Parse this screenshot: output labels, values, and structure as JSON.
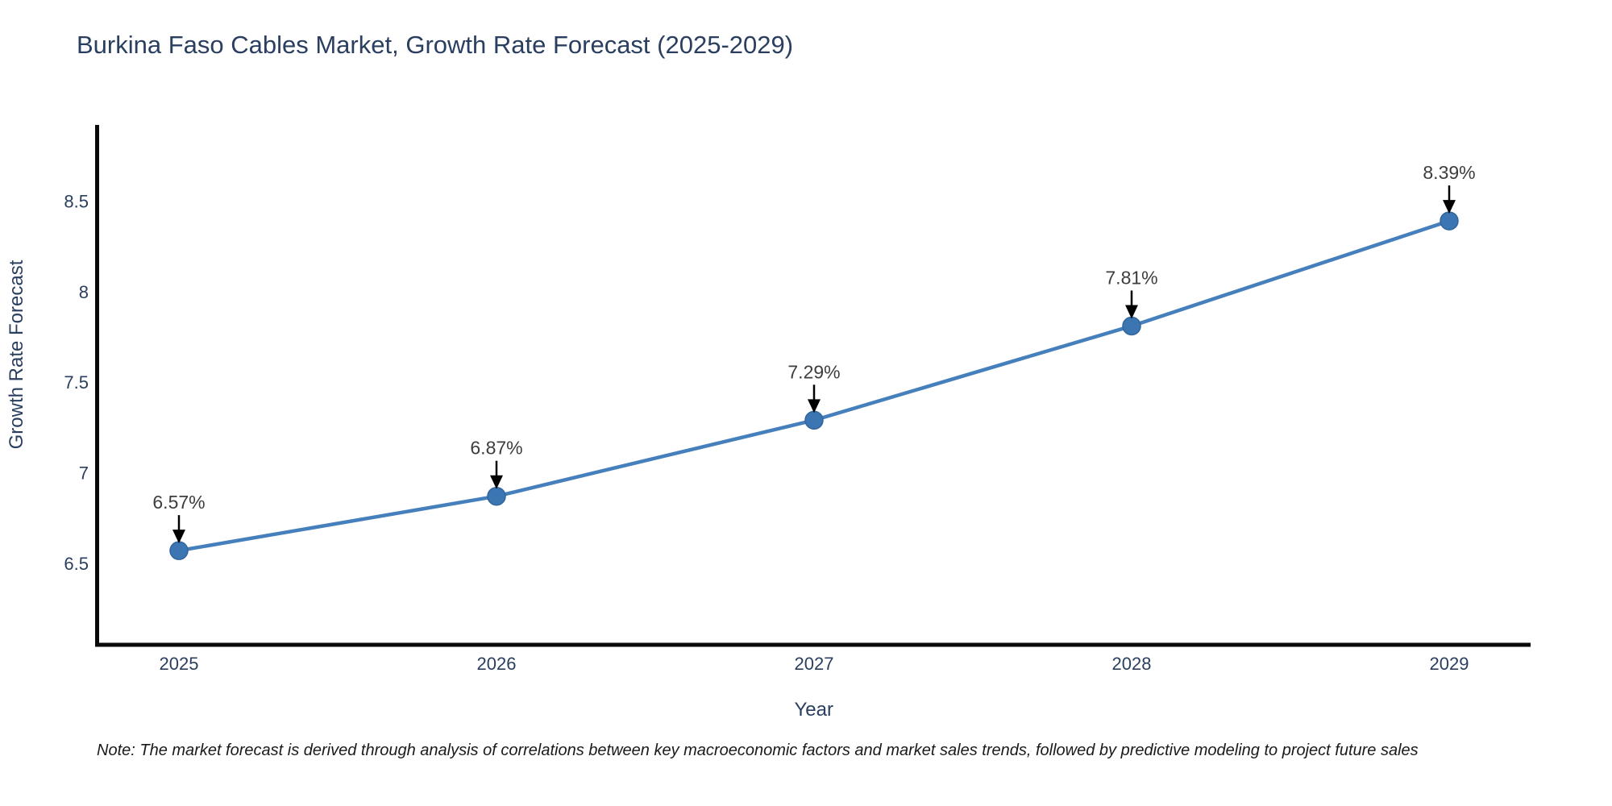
{
  "title": "Burkina Faso Cables Market, Growth Rate Forecast (2025-2029)",
  "note": "Note: The market forecast is derived through analysis of correlations between key macroeconomic factors and market sales trends, followed by predictive modeling to project future sales",
  "chart_data": {
    "type": "line",
    "title": "Burkina Faso Cables Market, Growth Rate Forecast (2025-2029)",
    "categories": [
      "2025",
      "2026",
      "2027",
      "2028",
      "2029"
    ],
    "x": [
      2025,
      2026,
      2027,
      2028,
      2029
    ],
    "values": [
      6.57,
      6.87,
      7.29,
      7.81,
      8.39
    ],
    "point_labels": [
      "6.57%",
      "6.87%",
      "7.29%",
      "7.81%",
      "8.39%"
    ],
    "xlabel": "Year",
    "ylabel": "Growth Rate Forecast",
    "ylim": [
      6.05,
      8.92
    ],
    "yticks": [
      6.5,
      7,
      7.5,
      8,
      8.5
    ],
    "ytick_labels": [
      "6.5",
      "7",
      "7.5",
      "8",
      "8.5"
    ],
    "grid": false,
    "legend": false,
    "colors": {
      "line": "#4680bc",
      "marker_fill": "#3b76b3",
      "marker_stroke": "#32659c",
      "axis_line": "#0a0a0a",
      "axis_text": "#2a3f5f",
      "annotation_text": "#3d3d3d",
      "annotation_arrow": "#000000"
    }
  }
}
